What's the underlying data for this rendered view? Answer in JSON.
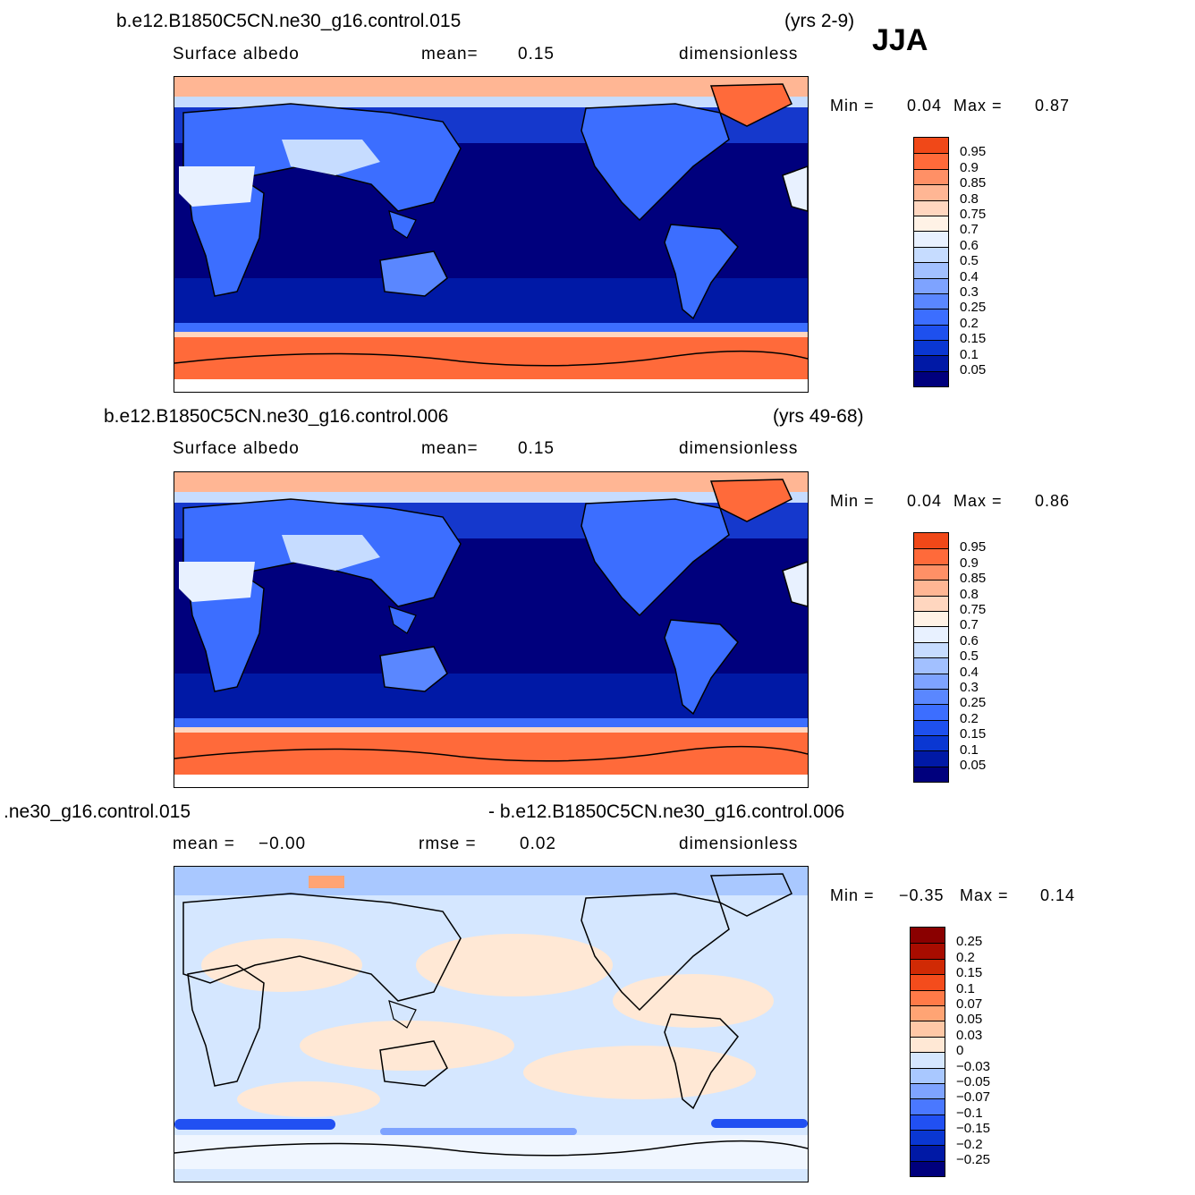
{
  "season": "JJA",
  "colors": {
    "abs_scale": [
      "#00007d",
      "#0019a6",
      "#0a37d2",
      "#1e50ee",
      "#3c6eff",
      "#5a87ff",
      "#7ea3ff",
      "#a2c0ff",
      "#c6dcff",
      "#e8f1ff",
      "#fff2e6",
      "#ffd6bf",
      "#ffb694",
      "#ff9066",
      "#ff6a3a",
      "#f04818",
      "#d22c05",
      "#b21200",
      "#8a0000"
    ],
    "diff_scale": [
      "#00007d",
      "#0019a6",
      "#0a37d2",
      "#2150f2",
      "#4a78ff",
      "#7ea3ff",
      "#a9c8ff",
      "#d5e7ff",
      "#ffe8d5",
      "#ffc8a6",
      "#ffa474",
      "#ff7a48",
      "#f44c1c",
      "#d02a05",
      "#a80c00",
      "#8a0000"
    ]
  },
  "chart_data": [
    {
      "type": "heatmap",
      "title": "b.e12.B1850C5CN.ne30_g16.control.015",
      "period": "(yrs 2-9)",
      "variable": "Surface albedo",
      "stat_label": "mean=",
      "stat_value": "0.15",
      "units": "dimensionless",
      "min_label": "Min =",
      "min_value": "0.04",
      "max_label": "Max =",
      "max_value": "0.87",
      "colorbar_ticks": [
        "0.95",
        "0.9",
        "0.85",
        "0.8",
        "0.75",
        "0.7",
        "0.6",
        "0.5",
        "0.4",
        "0.3",
        "0.25",
        "0.2",
        "0.15",
        "0.1",
        "0.05"
      ]
    },
    {
      "type": "heatmap",
      "title": "b.e12.B1850C5CN.ne30_g16.control.006",
      "period": "(yrs 49-68)",
      "variable": "Surface albedo",
      "stat_label": "mean=",
      "stat_value": "0.15",
      "units": "dimensionless",
      "min_label": "Min =",
      "min_value": "0.04",
      "max_label": "Max =",
      "max_value": "0.86",
      "colorbar_ticks": [
        "0.95",
        "0.9",
        "0.85",
        "0.8",
        "0.75",
        "0.7",
        "0.6",
        "0.5",
        "0.4",
        "0.3",
        "0.25",
        "0.2",
        "0.15",
        "0.1",
        "0.05"
      ]
    },
    {
      "type": "heatmap",
      "title_left": ".ne30_g16.control.015",
      "title_right": "- b.e12.B1850C5CN.ne30_g16.control.006",
      "mean_label": "mean =",
      "mean_value": "−0.00",
      "rmse_label": "rmse =",
      "rmse_value": "0.02",
      "units": "dimensionless",
      "min_label": "Min =",
      "min_value": "−0.35",
      "max_label": "Max =",
      "max_value": "0.14",
      "colorbar_ticks": [
        "0.25",
        "0.2",
        "0.15",
        "0.1",
        "0.07",
        "0.05",
        "0.03",
        "0",
        "−0.03",
        "−0.05",
        "−0.07",
        "−0.1",
        "−0.15",
        "−0.2",
        "−0.25"
      ]
    }
  ]
}
